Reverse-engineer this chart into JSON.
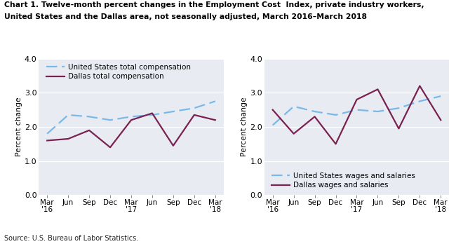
{
  "title_line1": "Chart 1. Twelve-month percent changes in the Employment Cost  Index, private industry workers,",
  "title_line2": "United States and the Dallas area, not seasonally adjusted, March 2016–March 2018",
  "source": "Source: U.S. Bureau of Labor Statistics.",
  "ylabel": "Percent change",
  "x_labels": [
    "Mar\n'16",
    "Jun",
    "Sep",
    "Dec",
    "Mar\n'17",
    "Jun",
    "Sep",
    "Dec",
    "Mar\n'18"
  ],
  "ylim": [
    0.0,
    4.0
  ],
  "yticks": [
    0.0,
    1.0,
    2.0,
    3.0,
    4.0
  ],
  "left_chart": {
    "us_total": [
      1.8,
      2.35,
      2.3,
      2.2,
      2.3,
      2.35,
      2.45,
      2.55,
      2.75
    ],
    "dallas_total": [
      1.6,
      1.65,
      1.9,
      1.4,
      2.2,
      2.4,
      1.45,
      2.35,
      2.2
    ],
    "legend_us": "United States total compensation",
    "legend_dallas": "Dallas total compensation"
  },
  "right_chart": {
    "us_wages": [
      2.05,
      2.6,
      2.45,
      2.35,
      2.5,
      2.45,
      2.55,
      2.75,
      2.9
    ],
    "dallas_wages": [
      2.5,
      1.8,
      2.3,
      1.5,
      2.8,
      3.1,
      1.95,
      3.2,
      2.2
    ],
    "legend_us": "United States wages and salaries",
    "legend_dallas": "Dallas wages and salaries"
  },
  "us_color": "#7ab8e8",
  "dallas_color": "#7b2050",
  "bg_color": "#ffffff",
  "plot_bg": "#e8ecf2"
}
